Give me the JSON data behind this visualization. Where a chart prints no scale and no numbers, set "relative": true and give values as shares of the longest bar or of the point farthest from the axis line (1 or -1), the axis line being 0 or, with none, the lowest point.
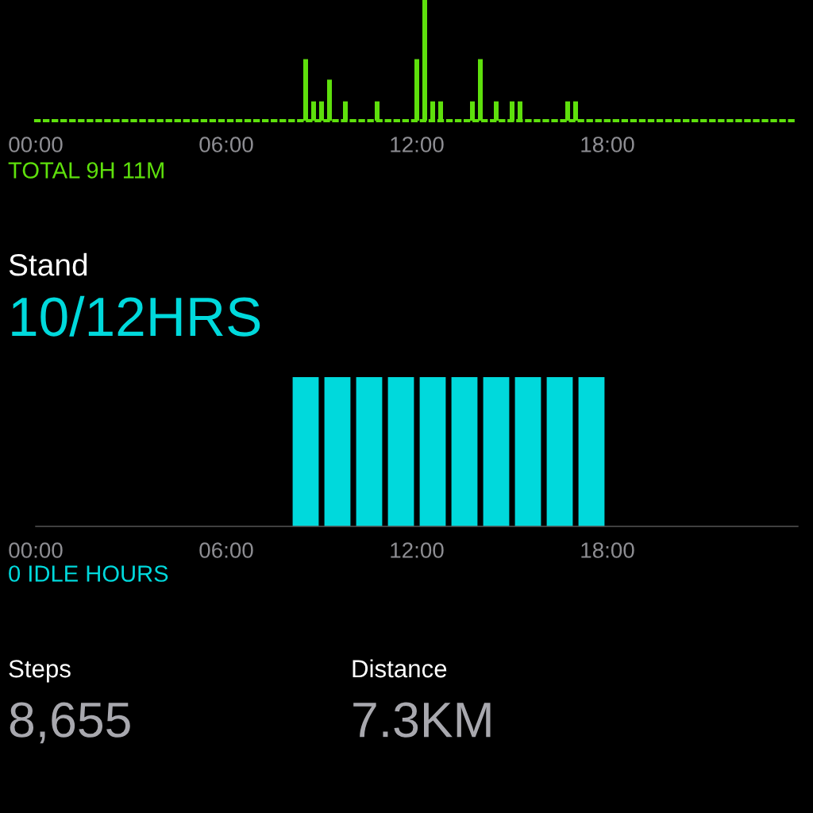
{
  "chart_data": [
    {
      "type": "bar",
      "relative": true,
      "color": "#5ee00c",
      "x": [
        8.5,
        8.75,
        9.0,
        9.25,
        9.75,
        10.75,
        12.0,
        12.25,
        12.5,
        12.75,
        13.75,
        14.0,
        14.5,
        15.0,
        15.25,
        16.75,
        17.0
      ],
      "values": [
        0.51,
        0.16,
        0.16,
        0.34,
        0.16,
        0.16,
        0.51,
        1,
        0.16,
        0.16,
        0.16,
        0.51,
        0.16,
        0.16,
        0.16,
        0.16,
        0.16
      ],
      "xlim": [
        0,
        24
      ],
      "xticks": [
        {
          "value": 0,
          "label": "00:00"
        },
        {
          "value": 6,
          "label": "06:00"
        },
        {
          "value": 12,
          "label": "12:00"
        },
        {
          "value": 18,
          "label": "18:00"
        }
      ],
      "annotations": [
        "TOTAL 9H 11M"
      ]
    },
    {
      "type": "bar",
      "relative": true,
      "color": "#00d9dc",
      "title": "Stand",
      "subtitle": "10/12HRS",
      "x": [
        8.5,
        9.5,
        10.5,
        11.5,
        12.5,
        13.5,
        14.5,
        15.5,
        16.5,
        17.5
      ],
      "values": [
        1,
        1,
        1,
        1,
        1,
        1,
        1,
        1,
        1,
        1
      ],
      "xlim": [
        0,
        24
      ],
      "xticks": [
        {
          "value": 0,
          "label": "00:00"
        },
        {
          "value": 6,
          "label": "06:00"
        },
        {
          "value": 12,
          "label": "12:00"
        },
        {
          "value": 18,
          "label": "18:00"
        }
      ],
      "annotations": [
        "0 IDLE HOURS"
      ]
    },
    {
      "type": "other",
      "annotations": [
        "Steps",
        "8,655",
        "Distance",
        "7.3KM"
      ]
    }
  ]
}
